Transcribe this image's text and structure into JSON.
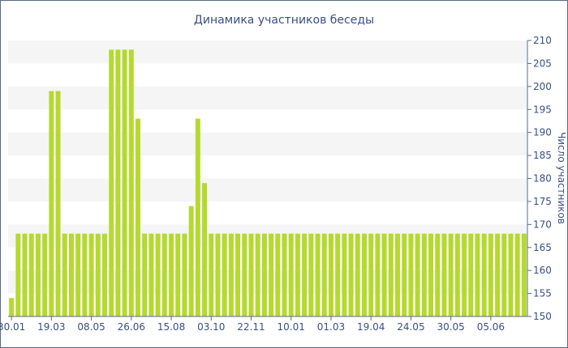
{
  "chart_data": {
    "type": "bar",
    "title": "Динамика участников беседы",
    "ylabel": "Число участников",
    "xlabel": "",
    "ylim": [
      150,
      210
    ],
    "y_ticks": [
      150,
      155,
      160,
      165,
      170,
      175,
      180,
      185,
      190,
      195,
      200,
      205,
      210
    ],
    "x_tick_labels": [
      "30.01",
      "19.03",
      "08.05",
      "26.06",
      "15.08",
      "03.10",
      "22.11",
      "10.01",
      "01.03",
      "19.04",
      "24.05",
      "30.05",
      "05.06"
    ],
    "x_tick_positions": [
      0,
      6,
      12,
      18,
      24,
      30,
      36,
      42,
      48,
      54,
      60,
      66,
      72
    ],
    "y_axis_side": "right",
    "grid": "horizontal-bands",
    "legend": "none",
    "bar_color": "#b5d92d",
    "band_color": "#f5f5f5",
    "values": [
      154,
      168,
      168,
      168,
      168,
      168,
      199,
      199,
      168,
      168,
      168,
      168,
      168,
      168,
      168,
      208,
      208,
      208,
      208,
      193,
      168,
      168,
      168,
      168,
      168,
      168,
      168,
      174,
      193,
      179,
      168,
      168,
      168,
      168,
      168,
      168,
      168,
      168,
      168,
      168,
      168,
      168,
      168,
      168,
      168,
      168,
      168,
      168,
      168,
      168,
      168,
      168,
      168,
      168,
      168,
      168,
      168,
      168,
      168,
      168,
      168,
      168,
      168,
      168,
      168,
      168,
      168,
      168,
      168,
      168,
      168,
      168,
      168,
      168,
      168,
      168,
      168,
      168
    ]
  }
}
